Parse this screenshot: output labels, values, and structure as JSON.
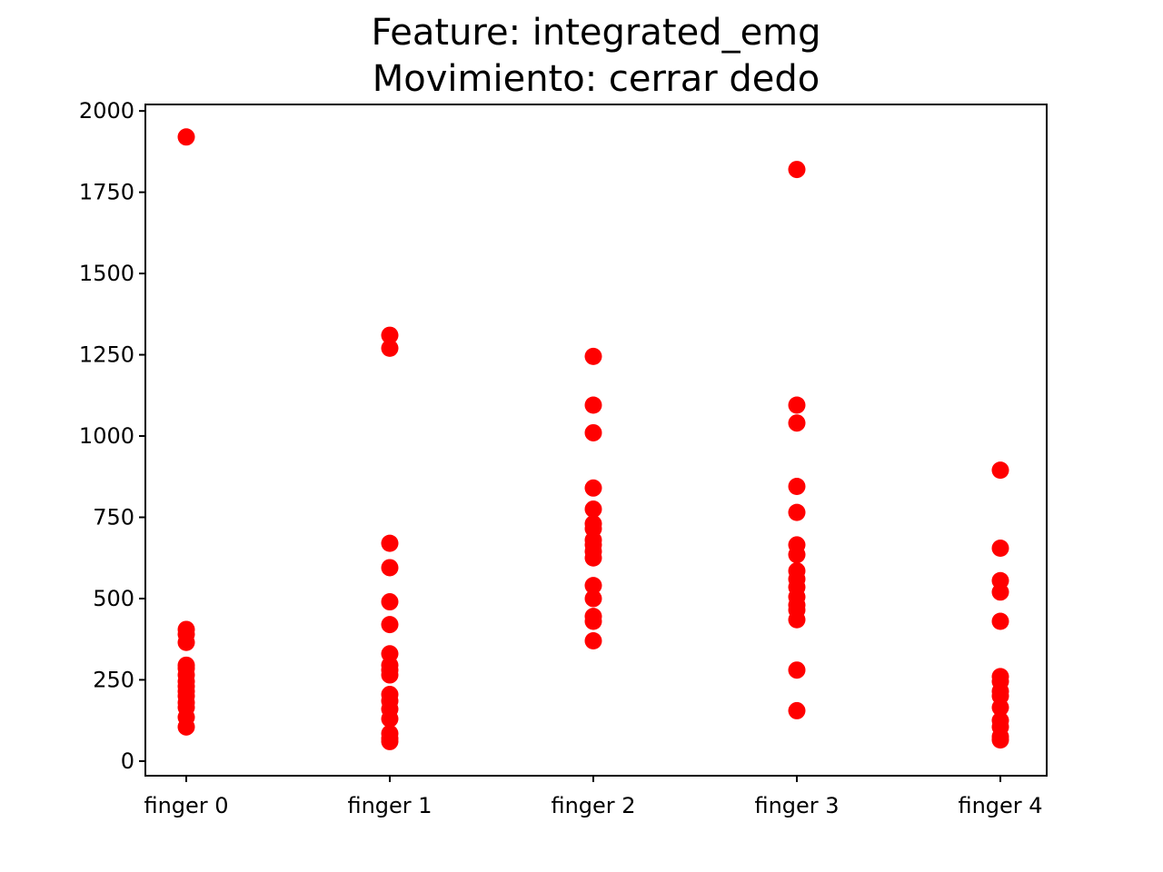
{
  "chart_data": {
    "type": "scatter",
    "title": "Feature: integrated_emg",
    "subtitle": "Movimiento: cerrar dedo",
    "xlabel": "",
    "ylabel": "",
    "categories": [
      "finger 0",
      "finger 1",
      "finger 2",
      "finger 3",
      "finger 4"
    ],
    "yticks": [
      0,
      250,
      500,
      750,
      1000,
      1250,
      1500,
      1750,
      2000
    ],
    "ylim": [
      -45,
      2020
    ],
    "grid": false,
    "marker_color": "#ff0000",
    "points": [
      [
        1920,
        405,
        390,
        365,
        295,
        285,
        265,
        245,
        230,
        215,
        200,
        180,
        165,
        135,
        105
      ],
      [
        1310,
        1270,
        670,
        595,
        490,
        420,
        330,
        295,
        280,
        265,
        205,
        185,
        160,
        130,
        85,
        70,
        60
      ],
      [
        1245,
        1095,
        1010,
        840,
        775,
        730,
        715,
        680,
        665,
        645,
        625,
        540,
        500,
        445,
        430,
        370
      ],
      [
        1820,
        1095,
        1040,
        845,
        765,
        665,
        635,
        585,
        560,
        535,
        505,
        480,
        465,
        435,
        280,
        155
      ],
      [
        895,
        655,
        555,
        520,
        430,
        260,
        245,
        215,
        200,
        165,
        125,
        105,
        75,
        65
      ]
    ]
  }
}
